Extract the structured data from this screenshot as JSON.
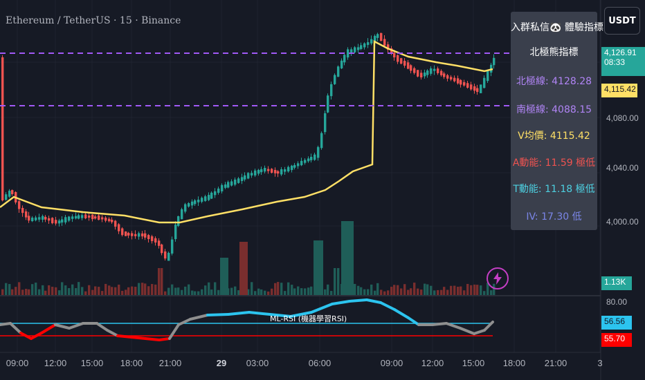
{
  "header": {
    "symbol_title": "Ethereum / TetherUS · 15 · Binance",
    "currency": "USDT"
  },
  "price_scale": {
    "labels": [
      "4,080.00",
      "4,040.00",
      "4,000.00"
    ],
    "current_price": "4,126.91",
    "countdown": "08:33",
    "vwap_price": "4,115.42",
    "volume": "1.13K"
  },
  "rsi_scale": {
    "top": "80.00",
    "value_cyan": "56.56",
    "value_red": "55.70"
  },
  "indicator_panel": {
    "title": "入群私信🐼 體驗指標",
    "subtitle": "北極熊指標",
    "north_line": "北極線: 4128.28",
    "south_line": "南極線: 4088.15",
    "vwap": "V均價: 4115.42",
    "a_momentum": "A動能: 11.59 極低",
    "t_momentum": "T動能: 11.18 極低",
    "iv": "IV: 17.30 低"
  },
  "rsi_pane": {
    "label": "ML-RSI (機器學習RSI)"
  },
  "time_axis": [
    "09:00",
    "12:00",
    "15:00",
    "18:00",
    "21:00",
    "29",
    "03:00",
    "06:00",
    "09:00",
    "12:00",
    "15:00",
    "18:00",
    "21:00",
    "3"
  ],
  "colors": {
    "background": "#161a25",
    "up": "#26a69a",
    "down": "#ef5350",
    "vwap_line": "#ffe066",
    "band_line": "#a259f7",
    "rsi_cyan": "#2cc4ef",
    "rsi_red": "#ff0000",
    "rsi_gray": "#8f8f8f"
  },
  "icons": {
    "bolt": "lightning-bolt-icon"
  }
}
